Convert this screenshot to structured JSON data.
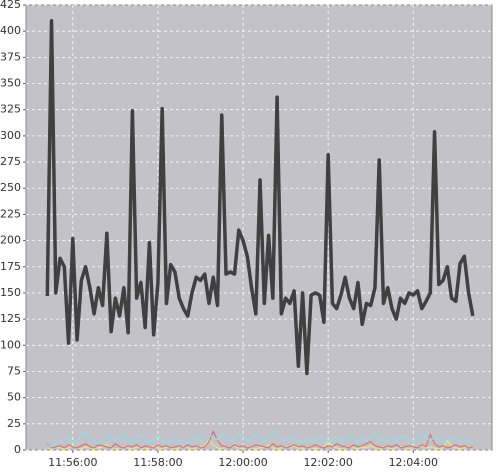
{
  "chart_data": {
    "type": "line",
    "x": [
      "11:55:24",
      "11:55:30",
      "11:55:36",
      "11:55:42",
      "11:55:48",
      "11:55:54",
      "11:56:00",
      "11:56:06",
      "11:56:12",
      "11:56:18",
      "11:56:24",
      "11:56:30",
      "11:56:36",
      "11:56:42",
      "11:56:48",
      "11:56:54",
      "11:57:00",
      "11:57:06",
      "11:57:12",
      "11:57:18",
      "11:57:24",
      "11:57:30",
      "11:57:36",
      "11:57:42",
      "11:57:48",
      "11:57:54",
      "11:58:00",
      "11:58:06",
      "11:58:12",
      "11:58:18",
      "11:58:24",
      "11:58:30",
      "11:58:36",
      "11:58:42",
      "11:58:48",
      "11:58:54",
      "11:59:00",
      "11:59:06",
      "11:59:12",
      "11:59:18",
      "11:59:24",
      "11:59:30",
      "11:59:36",
      "11:59:42",
      "11:59:48",
      "11:59:54",
      "12:00:00",
      "12:00:06",
      "12:00:12",
      "12:00:18",
      "12:00:24",
      "12:00:30",
      "12:00:36",
      "12:00:42",
      "12:00:48",
      "12:00:54",
      "12:01:00",
      "12:01:06",
      "12:01:12",
      "12:01:18",
      "12:01:24",
      "12:01:30",
      "12:01:36",
      "12:01:42",
      "12:01:48",
      "12:01:54",
      "12:02:00",
      "12:02:06",
      "12:02:12",
      "12:02:18",
      "12:02:24",
      "12:02:30",
      "12:02:36",
      "12:02:42",
      "12:02:48",
      "12:02:54",
      "12:03:00",
      "12:03:06",
      "12:03:12",
      "12:03:18",
      "12:03:24",
      "12:03:30",
      "12:03:36",
      "12:03:42",
      "12:03:48",
      "12:03:54",
      "12:04:00",
      "12:04:06",
      "12:04:12",
      "12:04:18",
      "12:04:24",
      "12:04:30",
      "12:04:36",
      "12:04:42",
      "12:04:48",
      "12:04:54",
      "12:05:00",
      "12:05:06",
      "12:05:12",
      "12:05:18",
      "12:05:24"
    ],
    "series": [
      {
        "color": "#404040",
        "values": [
          147,
          410,
          150,
          183,
          175,
          102,
          202,
          105,
          162,
          175,
          155,
          130,
          155,
          138,
          207,
          113,
          145,
          128,
          155,
          112,
          324,
          145,
          160,
          117,
          198,
          110,
          160,
          326,
          140,
          177,
          170,
          145,
          135,
          128,
          150,
          165,
          162,
          168,
          140,
          165,
          138,
          320,
          168,
          170,
          168,
          210,
          200,
          185,
          155,
          130,
          258,
          140,
          205,
          145,
          337,
          130,
          145,
          140,
          152,
          80,
          150,
          73,
          148,
          150,
          148,
          122,
          282,
          140,
          135,
          148,
          165,
          145,
          135,
          160,
          120,
          140,
          138,
          155,
          277,
          140,
          155,
          135,
          125,
          145,
          140,
          150,
          148,
          152,
          135,
          142,
          150,
          304,
          158,
          162,
          175,
          145,
          142,
          178,
          185,
          150,
          128
        ]
      },
      {
        "color": "#8fe0e8",
        "values": [
          5,
          3,
          6,
          8,
          10,
          12,
          7,
          9,
          15,
          17,
          12,
          8,
          6,
          10,
          14,
          11,
          9,
          13,
          16,
          10,
          8,
          12,
          15,
          9,
          7,
          11,
          14,
          10,
          6,
          9,
          12,
          8,
          5,
          7,
          10,
          13,
          9,
          11,
          14,
          12,
          10,
          15,
          12,
          8,
          11,
          16,
          13,
          9,
          12,
          14,
          10,
          8,
          12,
          18,
          14,
          10,
          9,
          13,
          11,
          8,
          7,
          10,
          12,
          9,
          14,
          11,
          8,
          10,
          13,
          9,
          11,
          14,
          10,
          8,
          12,
          9,
          11,
          16,
          13,
          10,
          8,
          12,
          9,
          11,
          14,
          10,
          8,
          12,
          15,
          11,
          9,
          12,
          10,
          8,
          11,
          13,
          10,
          9,
          12,
          8,
          6
        ]
      },
      {
        "color": "#e07070",
        "values": [
          6,
          2,
          3,
          4,
          2,
          5,
          3,
          2,
          4,
          6,
          3,
          2,
          5,
          4,
          3,
          2,
          6,
          3,
          2,
          4,
          3,
          5,
          2,
          4,
          3,
          2,
          5,
          3,
          4,
          2,
          3,
          4,
          2,
          5,
          3,
          4,
          2,
          3,
          8,
          18,
          9,
          4,
          3,
          2,
          5,
          3,
          4,
          2,
          3,
          5,
          4,
          3,
          2,
          6,
          3,
          4,
          2,
          3,
          5,
          3,
          4,
          2,
          3,
          5,
          3,
          2,
          4,
          3,
          6,
          4,
          3,
          2,
          5,
          3,
          4,
          6,
          8,
          4,
          3,
          2,
          4,
          3,
          5,
          2,
          3,
          4,
          3,
          2,
          5,
          3,
          15,
          6,
          3,
          4,
          2,
          3,
          5,
          3,
          4,
          2,
          3
        ]
      },
      {
        "color": "#e8e880",
        "values": [
          2,
          1,
          3,
          2,
          1,
          2,
          4,
          2,
          1,
          3,
          2,
          1,
          2,
          3,
          5,
          2,
          1,
          2,
          3,
          2,
          1,
          3,
          2,
          1,
          2,
          4,
          2,
          1,
          3,
          2,
          1,
          2,
          3,
          2,
          1,
          2,
          3,
          4,
          10,
          5,
          2,
          1,
          3,
          2,
          4,
          2,
          1,
          3,
          2,
          1,
          2,
          3,
          5,
          2,
          1,
          2,
          3,
          2,
          4,
          2,
          1,
          3,
          2,
          1,
          2,
          3,
          8,
          4,
          2,
          1,
          2,
          3,
          2,
          1,
          3,
          2,
          4,
          2,
          1,
          3,
          2,
          1,
          2,
          3,
          2,
          1,
          3,
          2,
          4,
          2,
          3,
          2,
          1,
          2,
          9,
          3,
          2,
          1,
          2,
          3,
          2
        ]
      }
    ],
    "xlim": [
      "11:54:54",
      "12:05:51"
    ],
    "xticks": [
      "11:56:00",
      "11:58:00",
      "12:00:00",
      "12:02:00",
      "12:04:00"
    ],
    "ylim": [
      0,
      425
    ],
    "yticks": [
      0,
      25,
      50,
      75,
      100,
      125,
      150,
      175,
      200,
      225,
      250,
      275,
      300,
      325,
      350,
      375,
      400,
      425
    ],
    "grid": true,
    "background": "#c2c2c8"
  }
}
